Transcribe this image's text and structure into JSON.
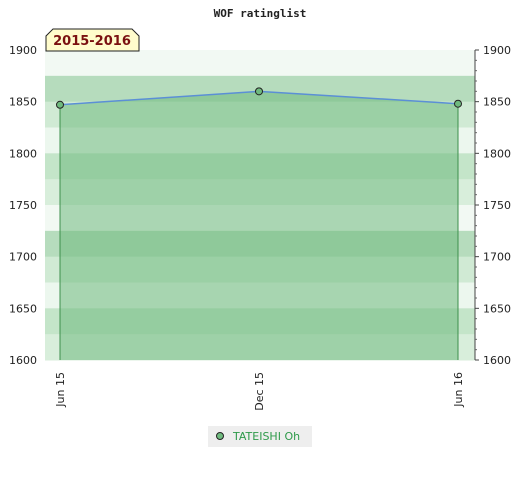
{
  "chart_data": {
    "type": "area",
    "title": "WOF ratinglist",
    "period_label": "2015-2016",
    "categories": [
      "Jun 15",
      "Dec 15",
      "Jun 16"
    ],
    "series": [
      {
        "name": "TATEISHI Oh",
        "values": [
          1847,
          1860,
          1848
        ]
      }
    ],
    "ylim": [
      1600,
      1900
    ],
    "yticks": [
      1600,
      1650,
      1700,
      1750,
      1800,
      1850,
      1900
    ],
    "y_axis_both_sides": true,
    "grid": true,
    "legend_position": "bottom-center",
    "colors": {
      "line": "#5b8fd6",
      "area": "#6fba7e",
      "marker": "#3d8f4c",
      "legend_text": "#2e9a4a",
      "badge_bg": "#fffccc",
      "badge_text": "#7a1010"
    }
  }
}
